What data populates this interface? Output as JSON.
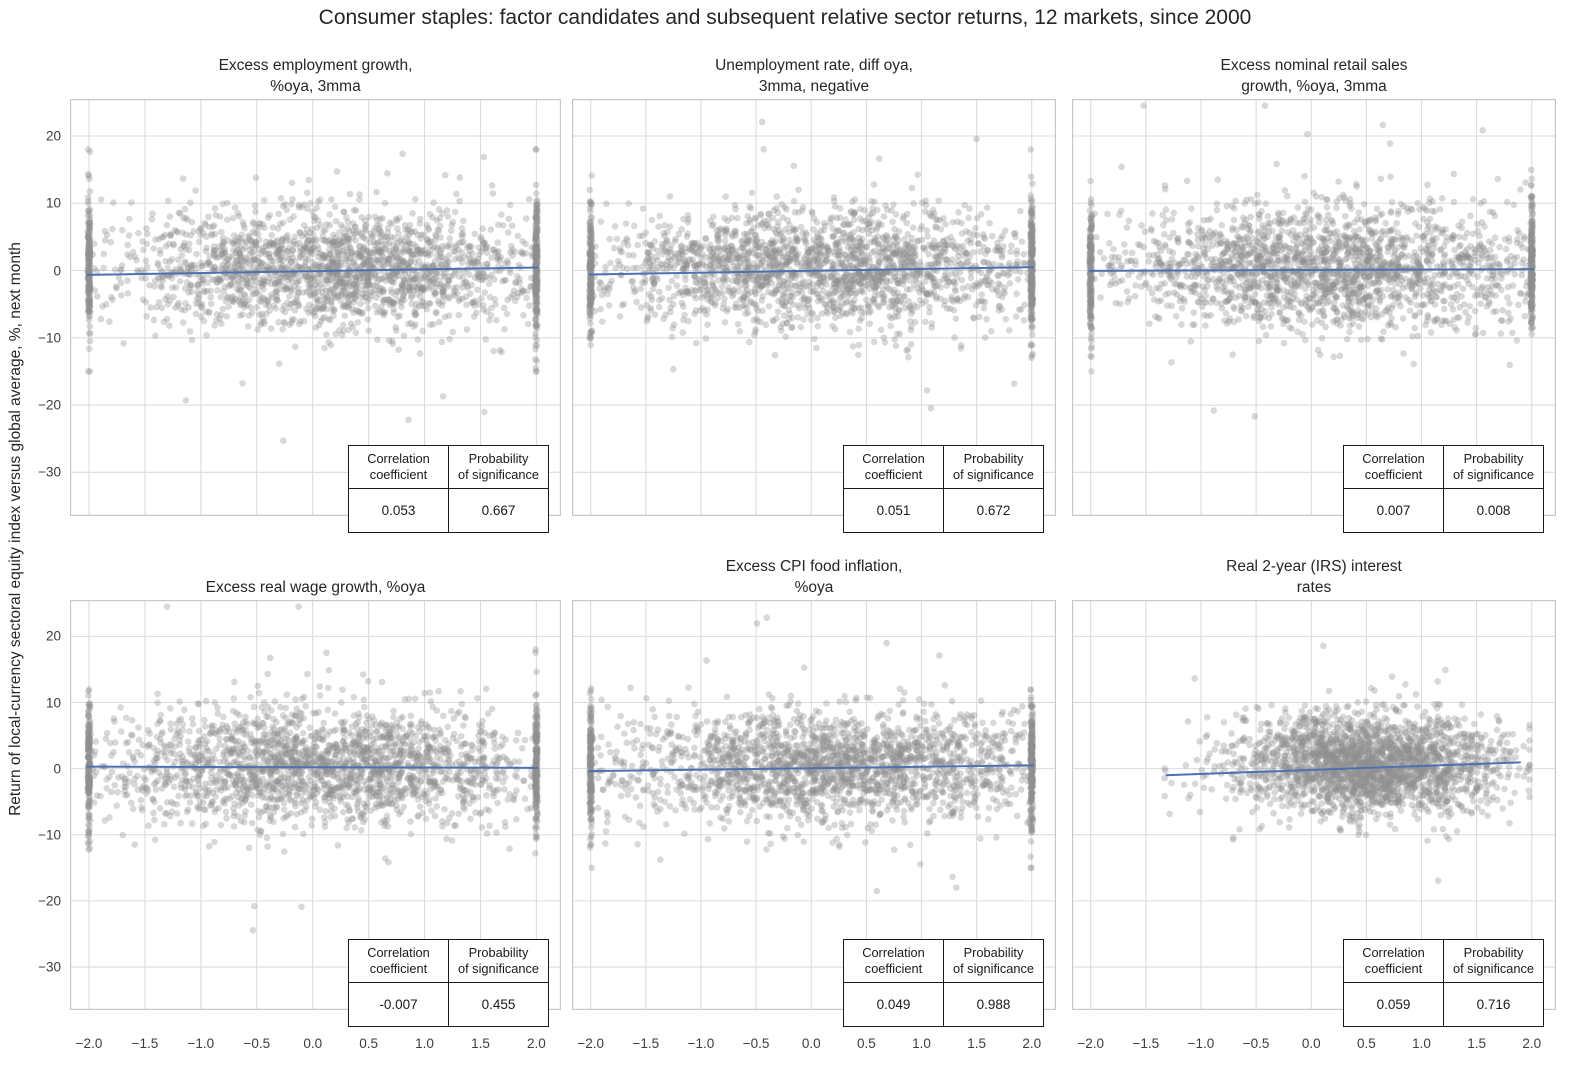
{
  "figure": {
    "title": "Consumer staples: factor candidates and subsequent relative sector returns, 12 markets, since 2000",
    "ylabel": "Return of local-currency sectoral equity index versus global average, %, next month"
  },
  "axes": {
    "xlim": [
      -2.17,
      2.22
    ],
    "ylim": [
      -36.5,
      25.5
    ],
    "x_ticks": [
      {
        "v": -2.0,
        "label": "−2.0"
      },
      {
        "v": -1.5,
        "label": "−1.5"
      },
      {
        "v": -1.0,
        "label": "−1.0"
      },
      {
        "v": -0.5,
        "label": "−0.5"
      },
      {
        "v": 0.0,
        "label": "0.0"
      },
      {
        "v": 0.5,
        "label": "0.5"
      },
      {
        "v": 1.0,
        "label": "1.0"
      },
      {
        "v": 1.5,
        "label": "1.5"
      },
      {
        "v": 2.0,
        "label": "2.0"
      }
    ],
    "y_ticks": [
      {
        "v": 20,
        "label": "20"
      },
      {
        "v": 10,
        "label": "10"
      },
      {
        "v": 0,
        "label": "0"
      },
      {
        "v": -10,
        "label": "−10"
      },
      {
        "v": -20,
        "label": "−20"
      },
      {
        "v": -30,
        "label": "−30"
      }
    ],
    "grid": true
  },
  "table_headers": [
    "Correlation\ncoefficient",
    "Probability\nof significance"
  ],
  "style": {
    "point_color": "#8f8f8f",
    "point_opacity": 0.35,
    "point_radius": 3.3,
    "trend_color": "#4c72b0",
    "grid_color": "#dcdcdc",
    "border_color": "#c8c8c8",
    "text_color": "#262626",
    "tick_color": "#3d3d3d"
  },
  "chart_data": [
    {
      "type": "scatter",
      "title": "Excess employment growth,\n%oya, 3mma",
      "correlation": "0.053",
      "probability": "0.667",
      "show_x_ticks": false,
      "show_y_ticks": true,
      "trendline": {
        "x": [
          -2.02,
          2.02
        ],
        "y": [
          -0.65,
          0.45
        ]
      },
      "scatter": {
        "seed": 101,
        "n": 2100,
        "x_mean": 0.2,
        "x_sd": 1.0,
        "winsor": 2.0,
        "band_n": 150,
        "x_clip": null,
        "y_mean": 0.4,
        "y_sd": 4.3,
        "tail_frac": 0.03,
        "tail_sd": 10.5
      }
    },
    {
      "type": "scatter",
      "title": "Unemployment rate, diff oya,\n3mma, negative",
      "correlation": "0.051",
      "probability": "0.672",
      "show_x_ticks": false,
      "show_y_ticks": false,
      "trendline": {
        "x": [
          -2.02,
          2.02
        ],
        "y": [
          -0.6,
          0.5
        ]
      },
      "scatter": {
        "seed": 202,
        "n": 2100,
        "x_mean": 0.1,
        "x_sd": 1.05,
        "winsor": 2.0,
        "band_n": 150,
        "x_clip": null,
        "y_mean": 0.4,
        "y_sd": 4.2,
        "tail_frac": 0.03,
        "tail_sd": 10.0
      }
    },
    {
      "type": "scatter",
      "title": "Excess nominal retail sales\ngrowth, %oya, 3mma",
      "correlation": "0.007",
      "probability": "0.008",
      "show_x_ticks": false,
      "show_y_ticks": false,
      "trendline": {
        "x": [
          -2.02,
          2.02
        ],
        "y": [
          -0.05,
          0.2
        ]
      },
      "scatter": {
        "seed": 303,
        "n": 2100,
        "x_mean": 0.15,
        "x_sd": 1.0,
        "winsor": 2.0,
        "band_n": 150,
        "x_clip": null,
        "y_mean": 0.4,
        "y_sd": 4.3,
        "tail_frac": 0.03,
        "tail_sd": 10.0
      }
    },
    {
      "type": "scatter",
      "title": "Excess real wage growth, %oya",
      "correlation": "-0.007",
      "probability": "0.455",
      "show_x_ticks": true,
      "show_y_ticks": true,
      "trendline": {
        "x": [
          -2.02,
          2.02
        ],
        "y": [
          0.3,
          0.12
        ]
      },
      "scatter": {
        "seed": 404,
        "n": 2100,
        "x_mean": 0.05,
        "x_sd": 1.0,
        "winsor": 2.0,
        "band_n": 150,
        "x_clip": null,
        "y_mean": 0.3,
        "y_sd": 4.4,
        "tail_frac": 0.035,
        "tail_sd": 10.5
      }
    },
    {
      "type": "scatter",
      "title": "Excess CPI food inflation,\n%oya",
      "correlation": "0.049",
      "probability": "0.988",
      "show_x_ticks": true,
      "show_y_ticks": false,
      "trendline": {
        "x": [
          -2.02,
          2.02
        ],
        "y": [
          -0.38,
          0.5
        ]
      },
      "scatter": {
        "seed": 505,
        "n": 2100,
        "x_mean": 0.15,
        "x_sd": 1.02,
        "winsor": 2.0,
        "band_n": 150,
        "x_clip": null,
        "y_mean": 0.4,
        "y_sd": 4.2,
        "tail_frac": 0.03,
        "tail_sd": 9.5
      }
    },
    {
      "type": "scatter",
      "title": "Real 2-year (IRS) interest\nrates",
      "correlation": "0.059",
      "probability": "0.716",
      "show_x_ticks": true,
      "show_y_ticks": false,
      "trendline": {
        "x": [
          -1.32,
          1.9
        ],
        "y": [
          -1.0,
          0.95
        ]
      },
      "scatter": {
        "seed": 606,
        "n": 2300,
        "x_mean": 0.5,
        "x_sd": 0.58,
        "winsor": null,
        "band_n": 0,
        "x_clip": [
          -1.33,
          1.98
        ],
        "y_mean": 0.75,
        "y_sd": 3.7,
        "tail_frac": 0.025,
        "tail_sd": 8.0
      }
    }
  ]
}
